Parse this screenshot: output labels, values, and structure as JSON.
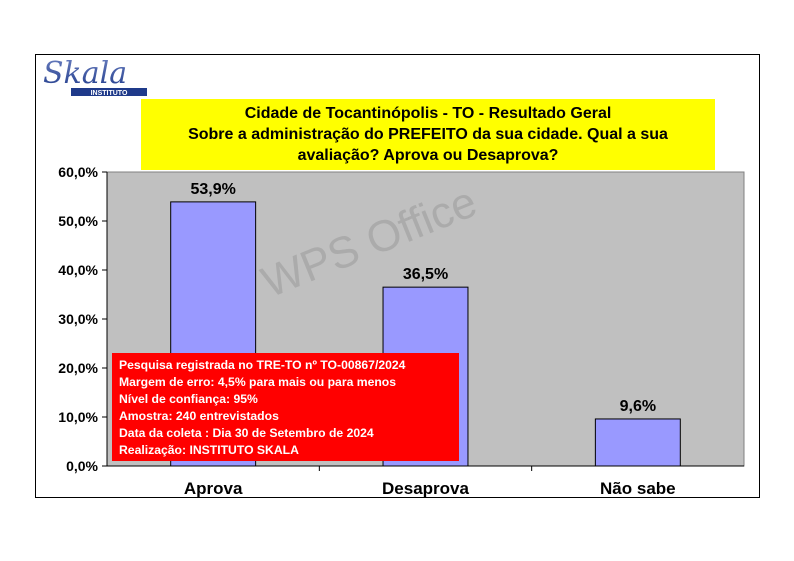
{
  "logo": {
    "text": "Skala",
    "subtext": "INSTITUTO"
  },
  "watermark": "WPS Office",
  "chart_data": {
    "type": "bar",
    "title_lines": [
      "Cidade de Tocantinópolis - TO - Resultado Geral",
      "Sobre a administração do PREFEITO da sua cidade. Qual a sua",
      "avaliação? Aprova ou Desaprova?"
    ],
    "categories": [
      "Aprova",
      "Desaprova",
      "Não sabe"
    ],
    "values": [
      53.9,
      36.5,
      9.6
    ],
    "value_labels": [
      "53,9%",
      "36,5%",
      "9,6%"
    ],
    "ylim": [
      0,
      60
    ],
    "yticks": [
      0,
      10,
      20,
      30,
      40,
      50,
      60
    ],
    "ytick_labels": [
      "0,0%",
      "10,0%",
      "20,0%",
      "30,0%",
      "40,0%",
      "50,0%",
      "60,0%"
    ],
    "xlabel": "",
    "ylabel": "",
    "grid": false,
    "colors": {
      "bar": "#9999ff",
      "plot_bg": "#c0c0c0",
      "title_bg": "#ffff00",
      "info_bg": "#ff0000"
    }
  },
  "info_box": {
    "lines": [
      "Pesquisa registrada no TRE-TO nº TO-00867/2024",
      "Margem de erro: 4,5% para mais ou para menos",
      "Nível de confiança: 95%",
      "Amostra: 240 entrevistados",
      "Data da coleta : Dia 30 de Setembro de 2024",
      "Realização: INSTITUTO SKALA"
    ]
  }
}
